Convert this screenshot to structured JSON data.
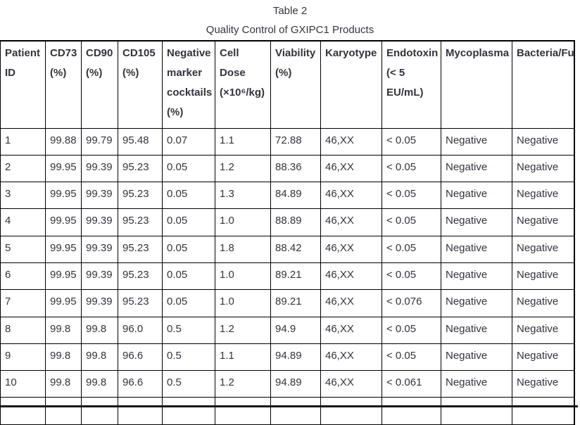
{
  "page": {
    "title": "Table 2",
    "subtitle": "Quality Control of GXIPC1 Products"
  },
  "table": {
    "columns": [
      "Patient\nID",
      "CD73\n(%)",
      "CD90\n(%)",
      "CD105\n(%)",
      "Negative\nmarker\ncocktails\n(%)",
      "Cell\nDose\n(×10⁶/kg)",
      "Viability\n(%)",
      "Karyotype",
      "Endotoxin\n(< 5\nEU/mL)",
      "Mycoplasma",
      "Bacteria/Fungi"
    ],
    "rows": [
      [
        "1",
        "99.88",
        "99.79",
        "95.48",
        "0.07",
        "1.1",
        "72.88",
        "46,XX",
        "< 0.05",
        "Negative",
        "Negative"
      ],
      [
        "2",
        "99.95",
        "99.39",
        "95.23",
        "0.05",
        "1.2",
        "88.36",
        "46,XX",
        "< 0.05",
        "Negative",
        "Negative"
      ],
      [
        "3",
        "99.95",
        "99.39",
        "95.23",
        "0.05",
        "1.3",
        "84.89",
        "46,XX",
        "< 0.05",
        "Negative",
        "Negative"
      ],
      [
        "4",
        "99.95",
        "99.39",
        "95.23",
        "0.05",
        "1.0",
        "88.89",
        "46,XX",
        "< 0.05",
        "Negative",
        "Negative"
      ],
      [
        "5",
        "99.95",
        "99.39",
        "95.23",
        "0.05",
        "1.8",
        "88.42",
        "46,XX",
        "< 0.05",
        "Negative",
        "Negative"
      ],
      [
        "6",
        "99.95",
        "99.39",
        "95.23",
        "0.05",
        "1.0",
        "89.21",
        "46,XX",
        "< 0.05",
        "Negative",
        "Negative"
      ],
      [
        "7",
        "99.95",
        "99.39",
        "95.23",
        "0.05",
        "1.0",
        "89.21",
        "46,XX",
        "< 0.076",
        "Negative",
        "Negative"
      ],
      [
        "8",
        "99.8",
        "99.8",
        "96.0",
        "0.5",
        "1.2",
        "94.9",
        "46,XX",
        "< 0.05",
        "Negative",
        "Negative"
      ],
      [
        "9",
        "99.8",
        "99.8",
        "96.6",
        "0.5",
        "1.1",
        "94.89",
        "46,XX",
        "< 0.05",
        "Negative",
        "Negative"
      ],
      [
        "10",
        "99.8",
        "99.8",
        "96.6",
        "0.5",
        "1.2",
        "94.89",
        "46,XX",
        "< 0.061",
        "Negative",
        "Negative"
      ]
    ]
  }
}
